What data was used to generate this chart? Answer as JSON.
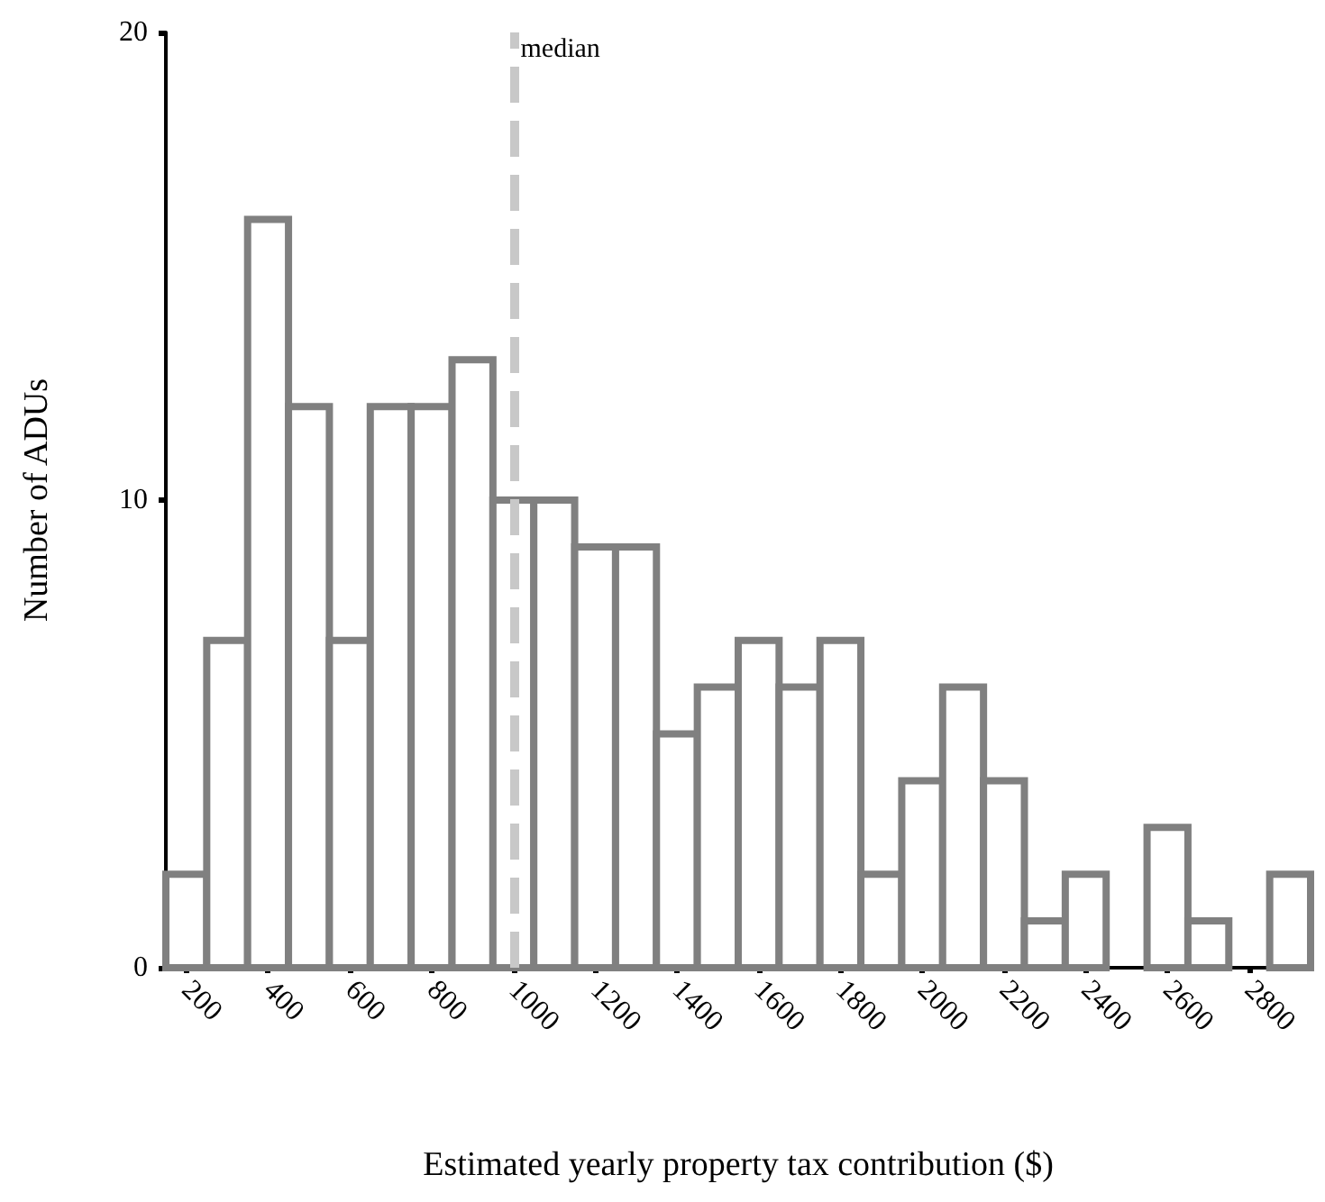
{
  "chart_data": {
    "type": "histogram",
    "xlabel": "Estimated yearly property tax contribution ($)",
    "ylabel": "Number of ADUs",
    "bins": [
      150,
      250,
      350,
      450,
      550,
      650,
      750,
      850,
      950,
      1050,
      1150,
      1250,
      1350,
      1450,
      1550,
      1650,
      1750,
      1850,
      1950,
      2050,
      2150,
      2250,
      2350,
      2450,
      2550,
      2650,
      2750,
      2850,
      2950
    ],
    "values": [
      2,
      7,
      16,
      12,
      7,
      12,
      12,
      13,
      10,
      10,
      9,
      9,
      5,
      6,
      7,
      6,
      7,
      2,
      4,
      6,
      4,
      1,
      2,
      0,
      3,
      1,
      0,
      2
    ],
    "color": "#808080",
    "xlim": [
      150,
      2950
    ],
    "xticks": [
      200,
      400,
      600,
      800,
      1000,
      1200,
      1400,
      1600,
      1800,
      2000,
      2200,
      2400,
      2600,
      2800
    ],
    "ylim": [
      0,
      20
    ],
    "yticks": [
      0,
      10,
      20
    ],
    "ref_lines": [
      {
        "axis": "x",
        "value": 1000,
        "label": "median",
        "color": "#c8c8c8",
        "line_style": "dashed"
      }
    ],
    "grid": false
  }
}
